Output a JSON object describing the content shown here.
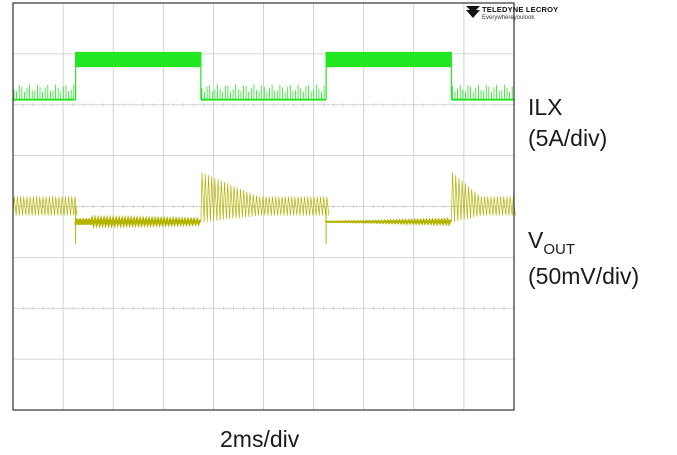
{
  "brand": {
    "name": "TELEDYNE LECROY",
    "tagline": "Everywhereyoulook"
  },
  "labels": {
    "ch1_name": "ILX",
    "ch1_scale": "(5A/div)",
    "ch2_name_main": "V",
    "ch2_name_sub": "OUT",
    "ch2_scale": "(50mV/div)",
    "timebase": "2ms/div"
  },
  "colors": {
    "grid": "#c8c8c8",
    "ilx": "#22e622",
    "vout": "#b3b300",
    "frame": "#333333"
  },
  "chart_data": {
    "type": "line",
    "title": "",
    "xlabel": "2ms/div",
    "ylabel": "",
    "grid": true,
    "grid_divisions": {
      "x": 10,
      "y": 8
    },
    "x_range_ms": [
      0,
      20
    ],
    "series": [
      {
        "name": "ILX",
        "unit": "A",
        "scale": "5A/div",
        "description": "Inductor current: pulsed high-current blocks alternating with low-level switching ripple",
        "high_level_div_from_top": 1.0,
        "low_level_div_from_top": 1.9,
        "high_band_div": 0.3,
        "ripple_div": 0.3,
        "segments_ms": [
          {
            "from": 0.0,
            "to": 2.5,
            "state": "ripple"
          },
          {
            "from": 2.5,
            "to": 7.5,
            "state": "high"
          },
          {
            "from": 7.5,
            "to": 12.5,
            "state": "ripple"
          },
          {
            "from": 12.5,
            "to": 17.5,
            "state": "high"
          },
          {
            "from": 17.5,
            "to": 20.0,
            "state": "ripple"
          }
        ]
      },
      {
        "name": "VOUT",
        "unit": "mV",
        "scale": "50mV/div",
        "description": "Output voltage: sawtooth ripple during light-load intervals, flat with small ripple during high-load intervals",
        "sawtooth_segments_ms": [
          {
            "from": 0.0,
            "to": 2.5
          },
          {
            "from": 7.5,
            "to": 12.5
          },
          {
            "from": 17.5,
            "to": 20.0
          }
        ],
        "flat_segments_ms": [
          {
            "from": 2.5,
            "to": 7.5
          },
          {
            "from": 12.5,
            "to": 17.5
          }
        ],
        "flat_level_div_from_top": 4.3,
        "sawtooth_center_div_from_top": 4.0
      }
    ]
  }
}
